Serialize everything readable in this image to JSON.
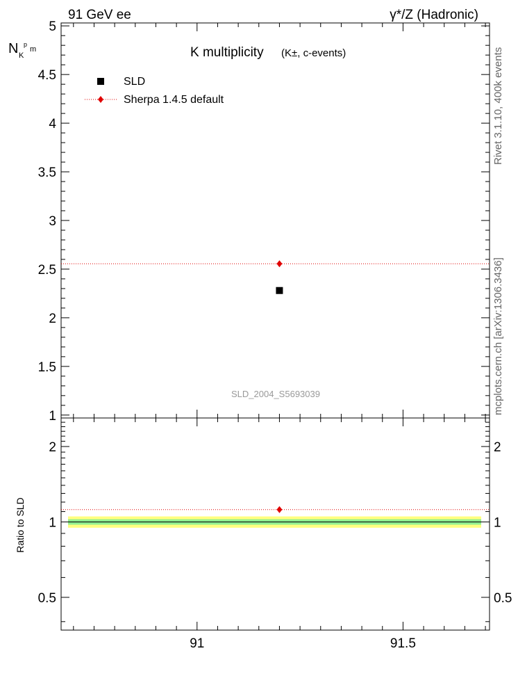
{
  "header": {
    "left": "91 GeV ee",
    "right": "γ*/Z (Hadronic)"
  },
  "side_labels": {
    "rivet": "Rivet 3.1.10,  400k events",
    "mcplots": "mcplots.cern.ch [arXiv:1306.3436]"
  },
  "watermark": "SLD_2004_S5693039",
  "chart_data": [
    {
      "type": "scatter",
      "title": "K multiplicity",
      "title_sub": "(K±, c-events)",
      "ylabel": "N",
      "ylabel_sub": "K",
      "ylabel_sup": "p",
      "ylabel_tail": "m",
      "xlim": [
        90.67,
        91.71
      ],
      "ylim": [
        0.97,
        5.03
      ],
      "y_ticks": [
        1,
        1.5,
        2,
        2.5,
        3,
        3.5,
        4,
        4.5,
        5
      ],
      "y_tick_labels": [
        "1",
        "1.5",
        "2",
        "2.5",
        "3",
        "3.5",
        "4",
        "4.5",
        "5"
      ],
      "legend_position": "top-left",
      "series": [
        {
          "name": "SLD",
          "marker": "square",
          "color": "#000000",
          "points": [
            {
              "x": 91.2,
              "y": 2.28
            }
          ]
        },
        {
          "name": "Sherpa 1.4.5 default",
          "marker": "diamond",
          "line": "dotted",
          "color": "#e00000",
          "points": [
            {
              "x": 91.2,
              "y": 2.555
            }
          ]
        }
      ]
    },
    {
      "type": "ratio",
      "ylabel": "Ratio to SLD",
      "xlim": [
        90.67,
        91.71
      ],
      "ylim": [
        0.37,
        2.6
      ],
      "y_scale": "log",
      "y_ticks": [
        0.5,
        1,
        2
      ],
      "y_tick_labels": [
        "0.5",
        "1",
        "2"
      ],
      "x_ticks": [
        91,
        91.5
      ],
      "x_tick_labels": [
        "91",
        "91.5"
      ],
      "bands": [
        {
          "name": "total uncertainty",
          "color": "#ffff80",
          "low": 0.948,
          "high": 1.052
        },
        {
          "name": "statistical uncertainty",
          "color": "#90ee90",
          "low": 0.975,
          "high": 1.025
        }
      ],
      "series": [
        {
          "name": "Sherpa 1.4.5 default",
          "marker": "diamond",
          "color": "#e00000",
          "points": [
            {
              "x": 91.2,
              "y": 1.12
            }
          ]
        }
      ],
      "reference_line": 1
    }
  ]
}
